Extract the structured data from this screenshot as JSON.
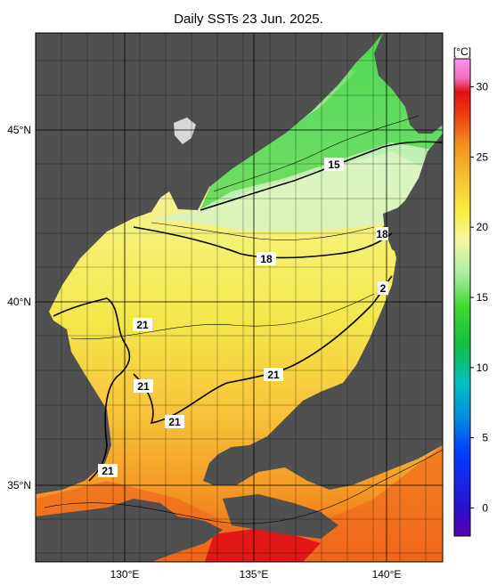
{
  "title": "Daily SSTs 23 Jun. 2025.",
  "colorbar": {
    "unit": "[°C]",
    "ticks": [
      {
        "value": 30,
        "label": "30"
      },
      {
        "value": 25,
        "label": "25"
      },
      {
        "value": 20,
        "label": "20"
      },
      {
        "value": 15,
        "label": "15"
      },
      {
        "value": 10,
        "label": "10"
      },
      {
        "value": 5,
        "label": "5"
      },
      {
        "value": 0,
        "label": "0"
      }
    ],
    "range": [
      -2,
      32
    ]
  },
  "axes": {
    "lat_labels": [
      {
        "value": 45,
        "label": "45°N"
      },
      {
        "value": 40,
        "label": "40°N"
      },
      {
        "value": 35,
        "label": "35°N"
      }
    ],
    "lon_labels": [
      {
        "value": 130,
        "label": "130°E"
      },
      {
        "value": 135,
        "label": "135°E"
      },
      {
        "value": 140,
        "label": "140°E"
      }
    ]
  },
  "contour_labels": [
    {
      "id": "c15",
      "text": "15"
    },
    {
      "id": "c18a",
      "text": "18"
    },
    {
      "id": "c18b",
      "text": "18"
    },
    {
      "id": "c21a",
      "text": "21"
    },
    {
      "id": "c21b",
      "text": "21"
    },
    {
      "id": "c21c",
      "text": "21"
    },
    {
      "id": "c21d",
      "text": "21"
    },
    {
      "id": "c21e",
      "text": "21"
    },
    {
      "id": "c2",
      "text": "2"
    }
  ]
}
